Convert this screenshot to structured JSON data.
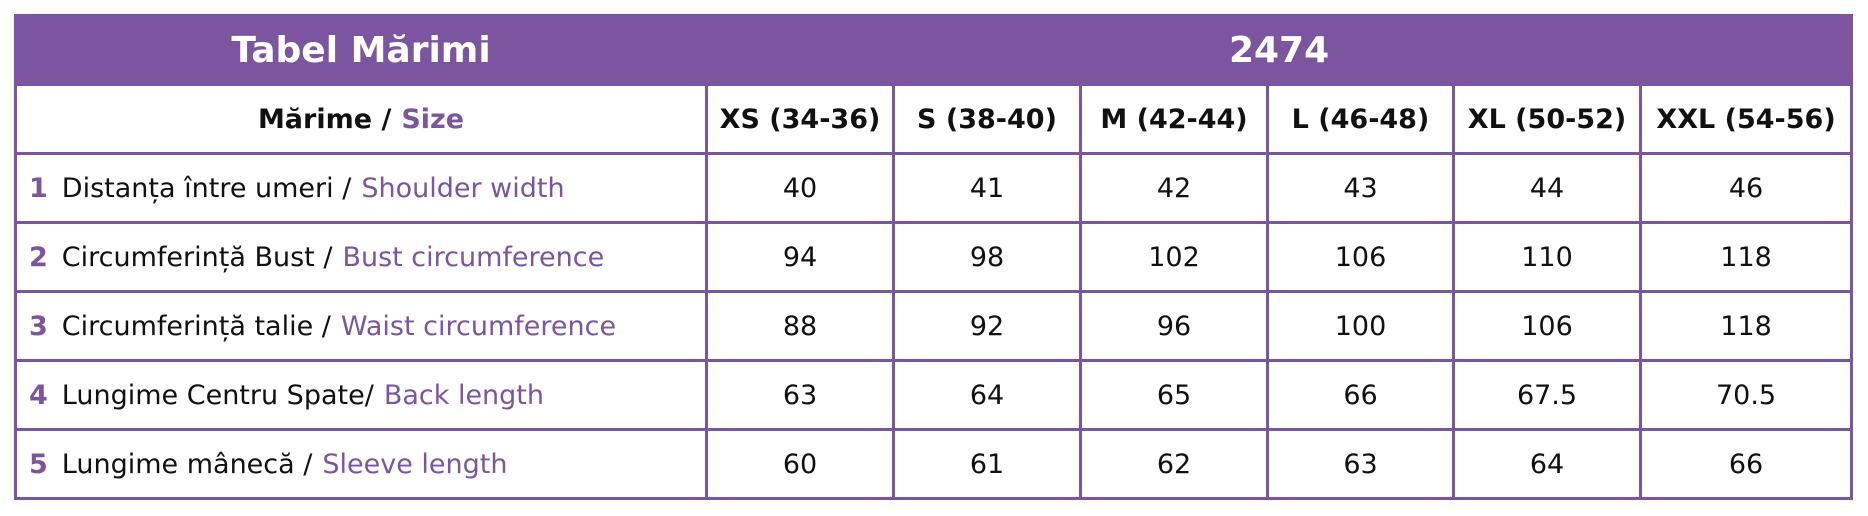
{
  "header": {
    "title": "Tabel Mărimi",
    "model": "2474"
  },
  "size_header": {
    "ro": "Mărime /",
    "en": "Size"
  },
  "sizes": [
    "XS (34-36)",
    "S (38-40)",
    "M (42-44)",
    "L (46-48)",
    "XL (50-52)",
    "XXL (54-56)"
  ],
  "rows": [
    {
      "number": "1",
      "ro": "Distanța între umeri /",
      "en": "Shoulder width",
      "values": [
        40,
        41,
        42,
        43,
        44,
        46
      ]
    },
    {
      "number": "2",
      "ro": "Circumferință Bust /",
      "en": "Bust circumference",
      "values": [
        94,
        98,
        102,
        106,
        110,
        118
      ]
    },
    {
      "number": "3",
      "ro": "Circumferință talie /",
      "en": "Waist circumference",
      "values": [
        88,
        92,
        96,
        100,
        106,
        118
      ]
    },
    {
      "number": "4",
      "ro": "Lungime Centru Spate/",
      "en": "Back length",
      "values": [
        63,
        64,
        65,
        66,
        67.5,
        70.5
      ]
    },
    {
      "number": "5",
      "ro": "Lungime mânecă /",
      "en": "Sleeve length",
      "values": [
        60,
        61,
        62,
        63,
        64,
        66
      ]
    }
  ]
}
